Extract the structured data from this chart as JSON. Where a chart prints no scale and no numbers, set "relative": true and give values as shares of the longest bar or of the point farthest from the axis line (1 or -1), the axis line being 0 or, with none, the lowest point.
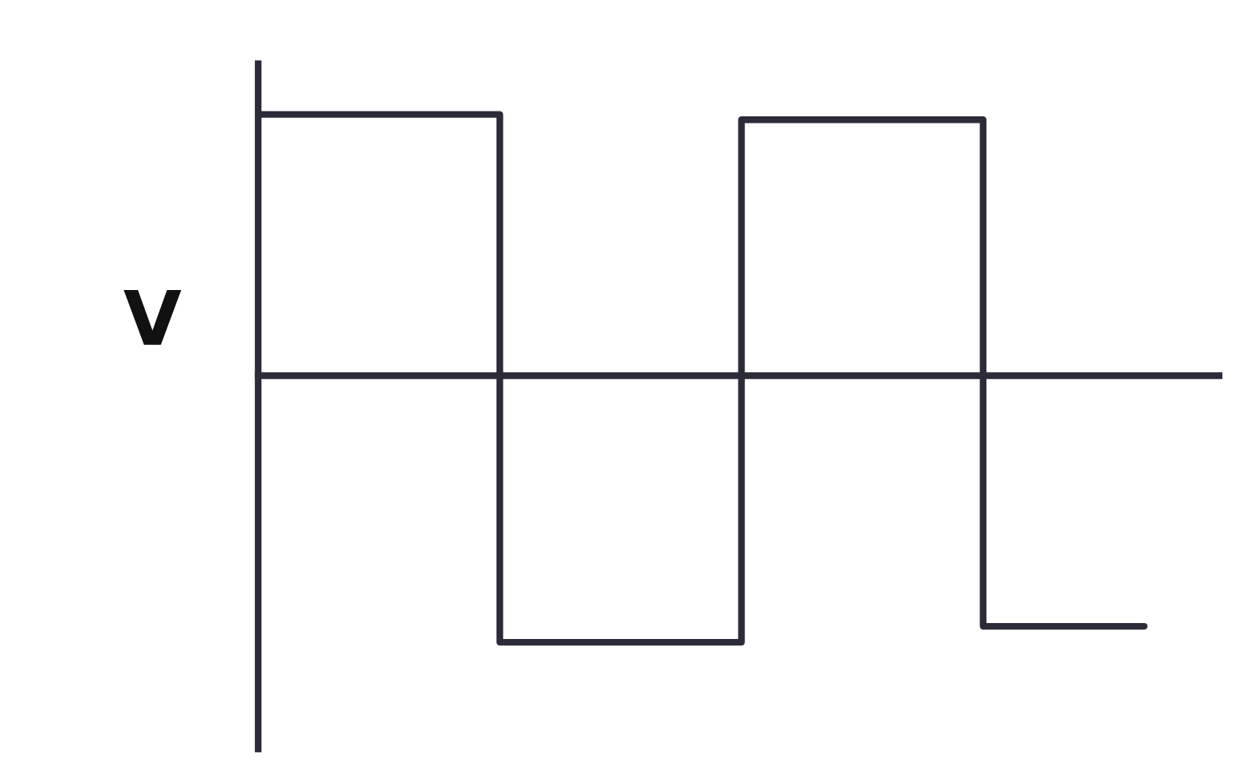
{
  "chart_data": {
    "type": "step",
    "relative": true,
    "ylabel": "V",
    "categories": [
      null,
      null,
      null,
      null,
      null,
      null,
      null,
      null,
      null,
      null,
      null,
      null
    ],
    "series": [
      {
        "color": "#2b2b3a",
        "values": [
          0.98,
          0.98,
          0.98,
          -1,
          -1,
          -1,
          0.96,
          0.96,
          0.96,
          -0.94,
          -0.94,
          -0.94
        ]
      }
    ],
    "marker": "none",
    "line_style": "solid"
  }
}
